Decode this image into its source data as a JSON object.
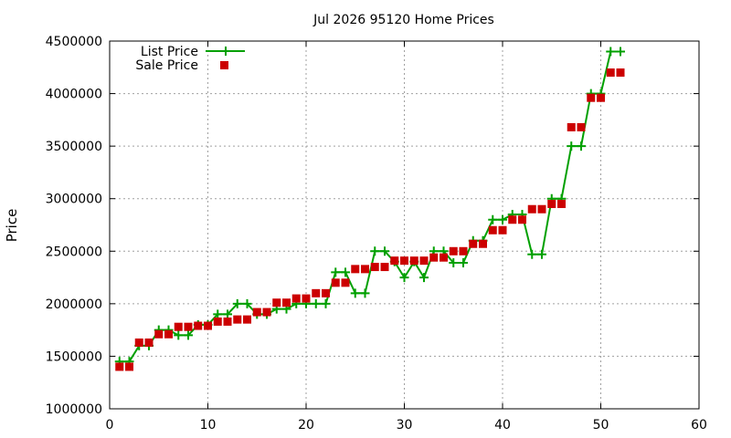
{
  "chart_data": {
    "type": "line",
    "title": "Jul 2026 95120 Home Prices",
    "xlabel": "",
    "ylabel": "Price",
    "xlim": [
      0,
      60
    ],
    "ylim": [
      1000000,
      4500000
    ],
    "xticks": [
      "0",
      "10",
      "20",
      "30",
      "40",
      "50",
      "60"
    ],
    "yticks": [
      "1000000",
      "1500000",
      "2000000",
      "2500000",
      "3000000",
      "3500000",
      "4000000",
      "4500000"
    ],
    "grid": true,
    "legend_position": "top-left",
    "series": [
      {
        "name": "List Price",
        "style": "line-with-plus-markers",
        "color": "#00a000",
        "x": [
          1,
          2,
          3,
          4,
          5,
          6,
          7,
          8,
          9,
          10,
          11,
          12,
          13,
          14,
          15,
          16,
          17,
          18,
          19,
          20,
          21,
          22,
          23,
          24,
          25,
          26,
          27,
          28,
          29,
          30,
          31,
          32,
          33,
          34,
          35,
          36,
          37,
          38,
          39,
          40,
          41,
          42,
          43,
          44,
          45,
          46,
          47,
          48,
          49,
          50,
          51,
          52
        ],
        "y": [
          1450000,
          1450000,
          1600000,
          1600000,
          1750000,
          1750000,
          1700000,
          1700000,
          1800000,
          1800000,
          1900000,
          1900000,
          2000000,
          2000000,
          1900000,
          1900000,
          1950000,
          1950000,
          2000000,
          2000000,
          2000000,
          2000000,
          2300000,
          2300000,
          2100000,
          2100000,
          2500000,
          2500000,
          2400000,
          2250000,
          2400000,
          2250000,
          2500000,
          2500000,
          2390000,
          2390000,
          2600000,
          2600000,
          2800000,
          2800000,
          2850000,
          2850000,
          2470000,
          2470000,
          3000000,
          3000000,
          3500000,
          3500000,
          4000000,
          4000000,
          4400000,
          4400000
        ]
      },
      {
        "name": "Sale Price",
        "style": "square-markers",
        "color": "#cc0000",
        "x": [
          1,
          2,
          3,
          4,
          5,
          6,
          7,
          8,
          9,
          10,
          11,
          12,
          13,
          14,
          15,
          16,
          17,
          18,
          19,
          20,
          21,
          22,
          23,
          24,
          25,
          26,
          27,
          28,
          29,
          30,
          31,
          32,
          33,
          34,
          35,
          36,
          37,
          38,
          39,
          40,
          41,
          42,
          43,
          44,
          45,
          46,
          47,
          48,
          49,
          50,
          51,
          52
        ],
        "y": [
          1400000,
          1400000,
          1630000,
          1630000,
          1710000,
          1710000,
          1780000,
          1780000,
          1790000,
          1790000,
          1830000,
          1830000,
          1850000,
          1850000,
          1920000,
          1920000,
          2010000,
          2010000,
          2050000,
          2050000,
          2100000,
          2100000,
          2200000,
          2200000,
          2330000,
          2330000,
          2350000,
          2350000,
          2410000,
          2410000,
          2410000,
          2410000,
          2440000,
          2440000,
          2500000,
          2500000,
          2570000,
          2570000,
          2700000,
          2700000,
          2800000,
          2800000,
          2900000,
          2900000,
          2950000,
          2950000,
          3680000,
          3680000,
          3960000,
          3960000,
          4200000,
          4200000
        ]
      }
    ]
  }
}
